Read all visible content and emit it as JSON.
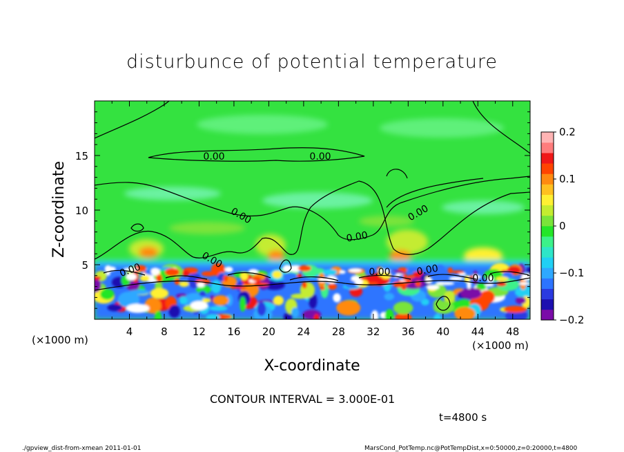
{
  "chart_data": {
    "type": "heatmap",
    "title": "disturbunce of potential temperature",
    "xlabel": "X-coordinate",
    "ylabel": "Z-coordinate",
    "x_unit_left": "(×1000 m)",
    "x_unit_right": "(×1000 m)",
    "xlim": [
      0,
      50
    ],
    "ylim": [
      0,
      20
    ],
    "x_ticks": [
      "4",
      "8",
      "12",
      "16",
      "20",
      "24",
      "28",
      "32",
      "36",
      "40",
      "44",
      "48"
    ],
    "y_ticks": [
      "5",
      "10",
      "15"
    ],
    "colorbar": {
      "range": [
        -0.2,
        0.2
      ],
      "tick_labels": [
        "0.2",
        "0.1",
        "0",
        "−0.1",
        "−0.2"
      ],
      "colors": [
        "#7a0ca8",
        "#1c10b0",
        "#2a3ae0",
        "#2d74ff",
        "#2ea8ff",
        "#20d0f4",
        "#2ee6c8",
        "#3cf28a",
        "#24e628",
        "#7ae43a",
        "#c4ec30",
        "#fff033",
        "#ffc020",
        "#ff8a10",
        "#ff4400",
        "#f01818",
        "#ff7c7c",
        "#ffb4b4"
      ]
    },
    "contour_labels": [
      "0.00",
      "0.00",
      "0.00",
      "0.00",
      "0.00",
      "0.00",
      "0.00",
      "0.00",
      "0.00",
      "0.00"
    ],
    "contour_interval_text": "CONTOUR INTERVAL = 3.000E-01",
    "time_text": "t=4800 s"
  },
  "footer": {
    "left": "./gpview_dist-from-xmean 2011-01-01",
    "right": "MarsCond_PotTemp.nc@PotTempDist,x=0:50000,z=0:20000,t=4800"
  }
}
